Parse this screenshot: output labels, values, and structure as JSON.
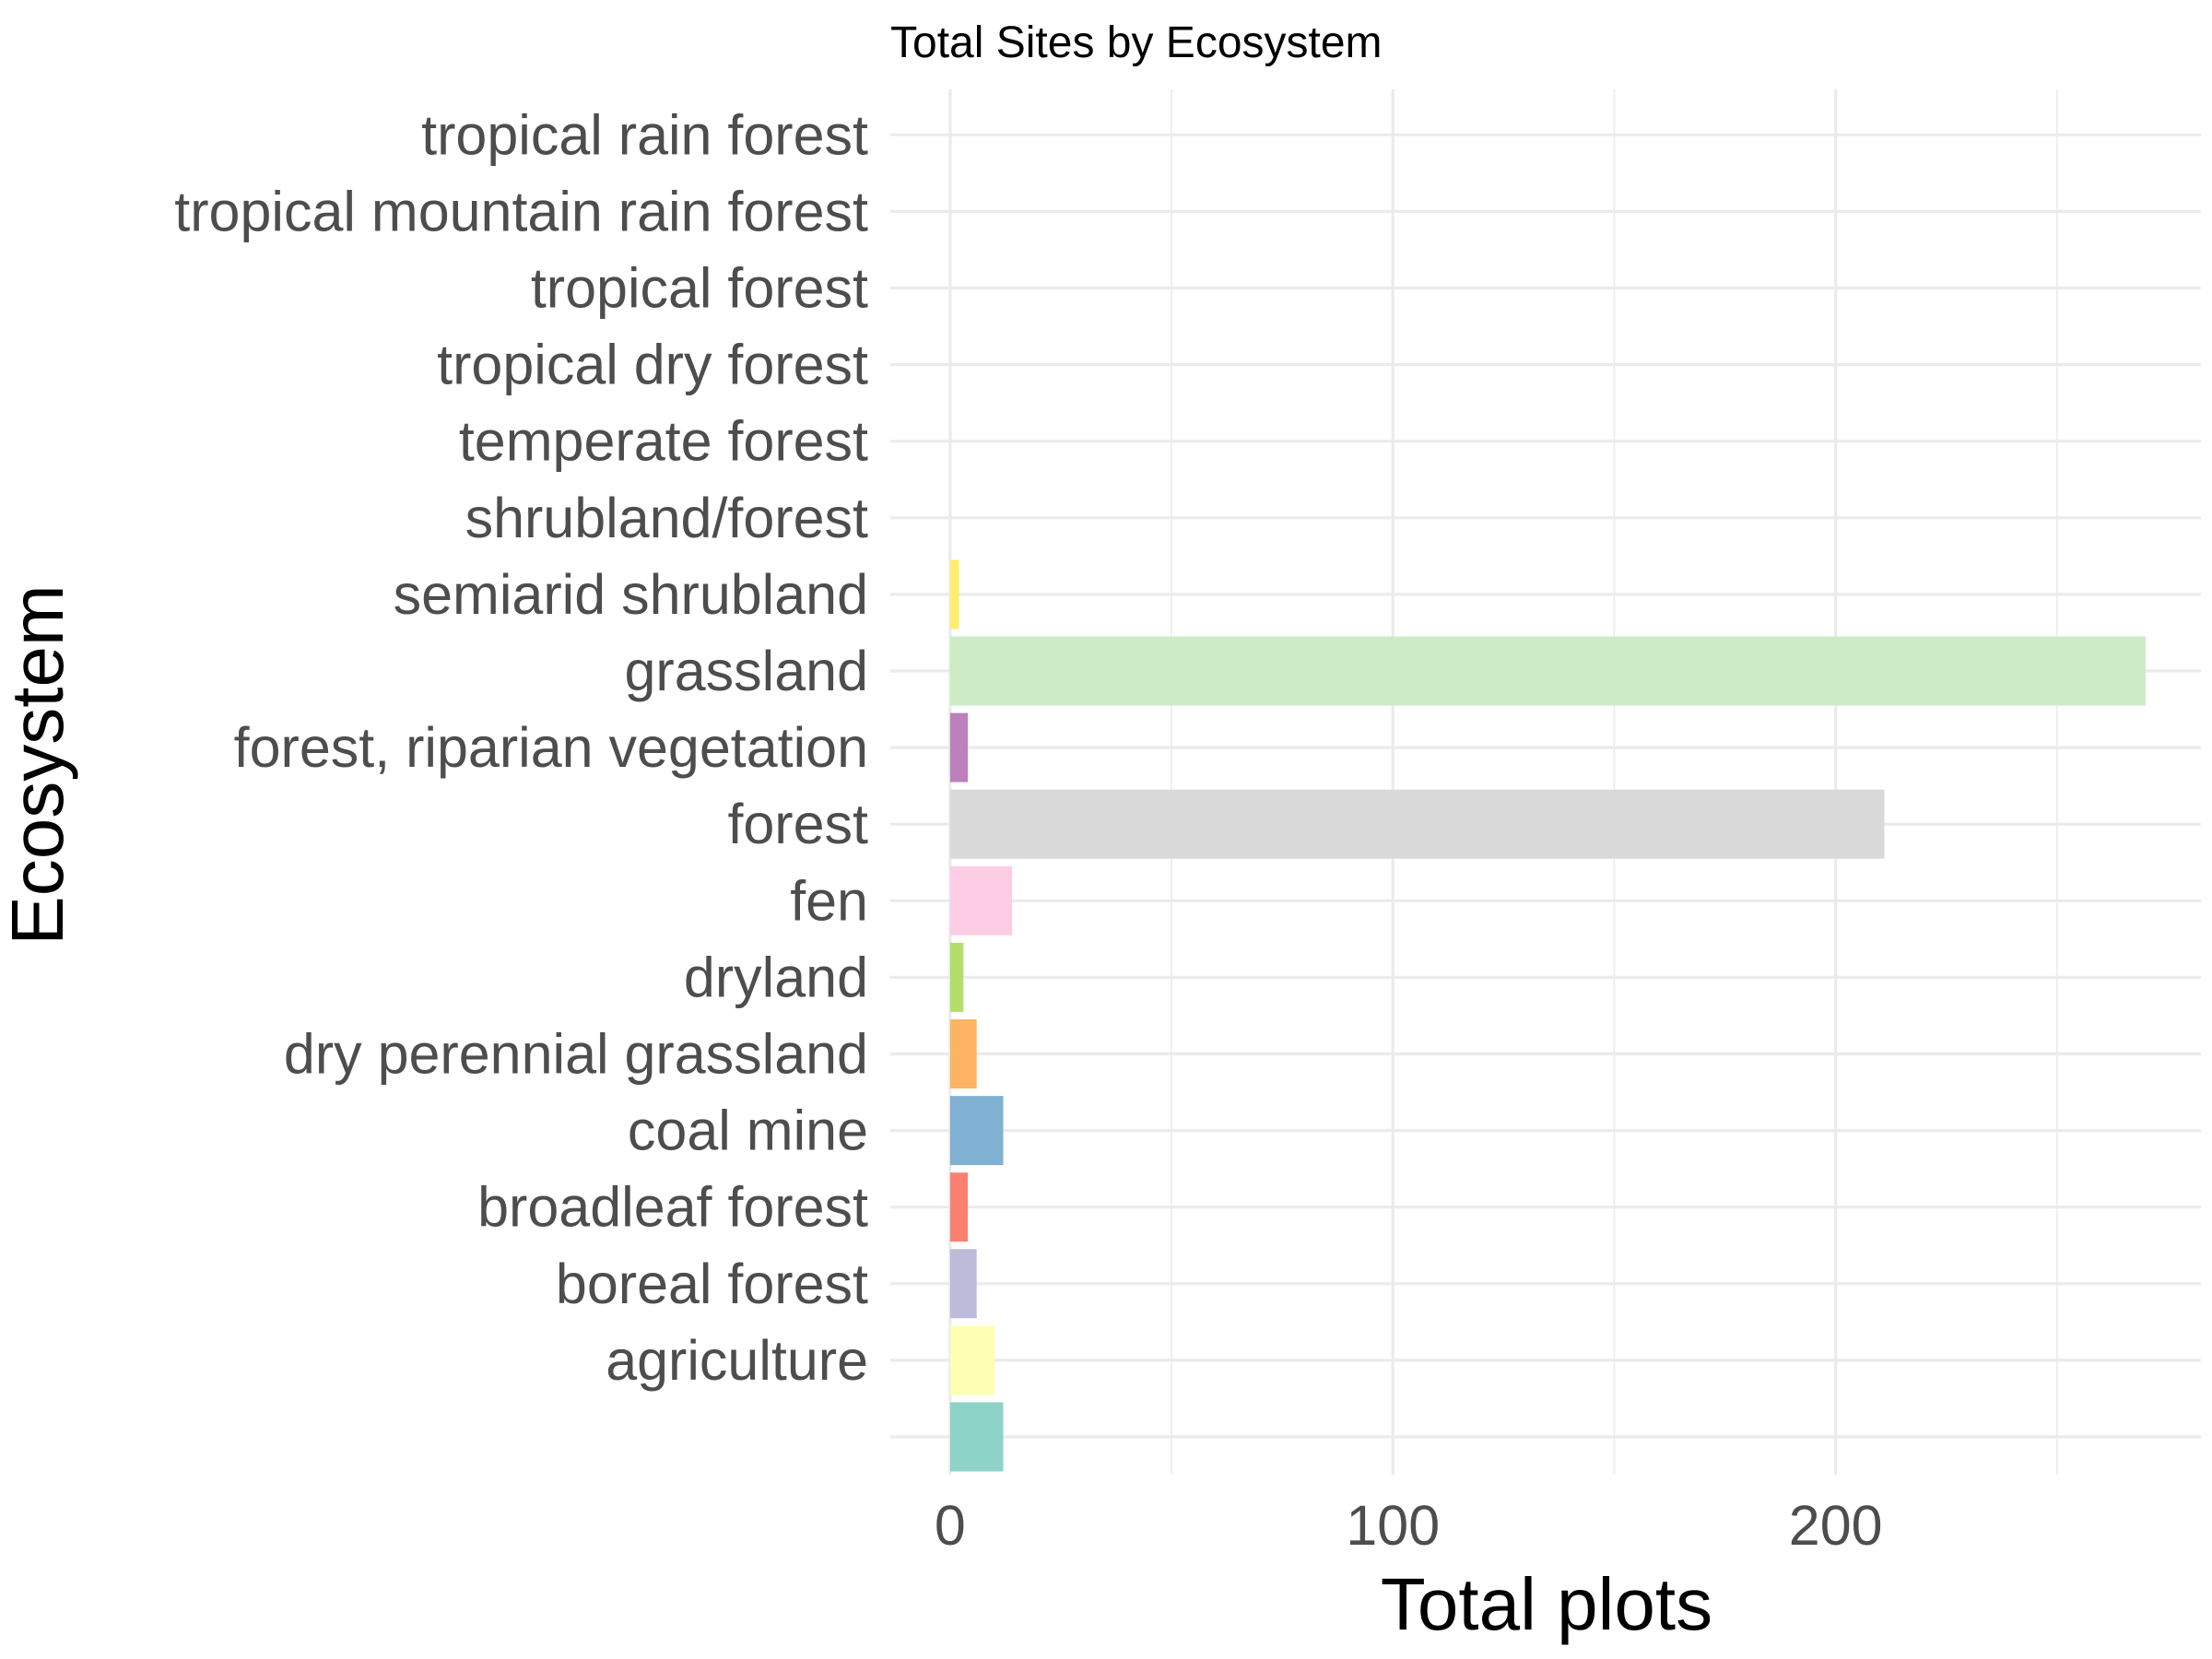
{
  "chart_data": {
    "type": "bar",
    "orientation": "horizontal",
    "title": "Total Sites by Ecosystem",
    "xlabel": "Total plots",
    "ylabel": "Ecosystem",
    "xlim": [
      -13.5,
      282.5
    ],
    "x_ticks": [
      0,
      100,
      200
    ],
    "x_tick_labels": [
      "0",
      "100",
      "200"
    ],
    "grid": true,
    "legend": "none",
    "categories": [
      "",
      "agriculture",
      "boreal forest",
      "broadleaf forest",
      "coal mine",
      "dry perennial grassland",
      "dryland",
      "fen",
      "forest",
      "forest, riparian vegetation",
      "grassland",
      "semiarid shrubland",
      "shrubland/forest",
      "temperate forest",
      "tropical dry forest",
      "tropical forest",
      "tropical mountain rain forest",
      "tropical rain forest"
    ],
    "values": [
      12,
      10,
      6,
      4,
      12,
      6,
      3,
      14,
      211,
      4,
      270,
      2,
      0,
      0,
      0,
      0,
      0,
      0
    ],
    "colors": [
      "#8dd3c7",
      "#ffffb3",
      "#bebada",
      "#fb8072",
      "#80b1d3",
      "#fdb462",
      "#b3de69",
      "#fccde5",
      "#d9d9d9",
      "#bc80bd",
      "#ccebc5",
      "#ffed6f",
      "#8dd3c7",
      "#ffffb3",
      "#bebada",
      "#fb8072",
      "#80b1d3",
      "#fdb462"
    ]
  }
}
